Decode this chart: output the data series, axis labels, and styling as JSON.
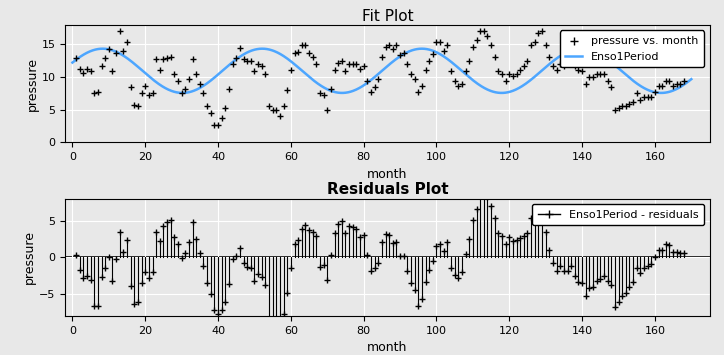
{
  "title_fit": "Fit Plot",
  "title_residuals": "Residuals Plot",
  "xlabel": "month",
  "ylabel": "pressure",
  "fit_color": "#4da6ff",
  "data_color": "black",
  "legend_fit": [
    "pressure vs. month",
    "Enso1Period"
  ],
  "legend_residuals": [
    "Enso1Period - residuals"
  ],
  "fit_linewidth": 1.8,
  "xlim": [
    -2,
    175
  ],
  "ylim_fit": [
    0,
    18
  ],
  "ylim_residuals": [
    -8,
    8
  ],
  "yticks_fit": [
    0,
    5,
    10,
    15
  ],
  "yticks_residuals": [
    -5,
    0,
    5
  ],
  "xticks": [
    0,
    20,
    40,
    60,
    80,
    100,
    120,
    140,
    160
  ],
  "background_color": "#e8e8e8",
  "marker": "+",
  "b1": 10.952,
  "b2": 3.148,
  "b3": 43.84,
  "b4": 1.263,
  "enso_months": [
    1,
    2,
    3,
    4,
    5,
    6,
    7,
    8,
    9,
    10,
    11,
    12,
    13,
    14,
    15,
    16,
    17,
    18,
    19,
    20,
    21,
    22,
    23,
    24,
    25,
    26,
    27,
    28,
    29,
    30,
    31,
    32,
    33,
    34,
    35,
    36,
    37,
    38,
    39,
    40,
    41,
    42,
    43,
    44,
    45,
    46,
    47,
    48,
    49,
    50,
    51,
    52,
    53,
    54,
    55,
    56,
    57,
    58,
    59,
    60,
    61,
    62,
    63,
    64,
    65,
    66,
    67,
    68,
    69,
    70,
    71,
    72,
    73,
    74,
    75,
    76,
    77,
    78,
    79,
    80,
    81,
    82,
    83,
    84,
    85,
    86,
    87,
    88,
    89,
    90,
    91,
    92,
    93,
    94,
    95,
    96,
    97,
    98,
    99,
    100,
    101,
    102,
    103,
    104,
    105,
    106,
    107,
    108,
    109,
    110,
    111,
    112,
    113,
    114,
    115,
    116,
    117,
    118,
    119,
    120,
    121,
    122,
    123,
    124,
    125,
    126,
    127,
    128,
    129,
    130,
    131,
    132,
    133,
    134,
    135,
    136,
    137,
    138,
    139,
    140,
    141,
    142,
    143,
    144,
    145,
    146,
    147,
    148,
    149,
    150,
    151,
    152,
    153,
    154,
    155,
    156,
    157,
    158,
    159,
    160,
    161,
    162,
    163,
    164,
    165,
    166,
    167,
    168
  ],
  "enso_pressure": [
    12.9,
    11.3,
    10.6,
    11.2,
    10.9,
    7.5,
    7.7,
    11.7,
    12.9,
    14.3,
    10.9,
    13.7,
    17.1,
    14.0,
    15.3,
    8.5,
    5.7,
    5.5,
    7.6,
    8.6,
    7.3,
    7.6,
    12.7,
    11.0,
    12.7,
    12.9,
    13.0,
    10.5,
    9.4,
    7.5,
    8.1,
    9.7,
    12.7,
    10.5,
    8.9,
    7.5,
    5.5,
    4.5,
    2.7,
    2.7,
    3.7,
    5.2,
    8.2,
    12.0,
    12.9,
    14.4,
    12.7,
    12.5,
    12.5,
    10.9,
    12.0,
    11.7,
    10.5,
    5.5,
    5.0,
    4.9,
    4.0,
    5.5,
    8.0,
    11.0,
    13.7,
    13.9,
    14.9,
    14.9,
    13.7,
    13.0,
    12.0,
    7.5,
    7.3,
    5.0,
    8.2,
    11.0,
    12.2,
    12.5,
    10.9,
    12.0,
    12.0,
    12.0,
    11.2,
    11.7,
    9.4,
    7.7,
    8.5,
    9.7,
    13.0,
    14.6,
    14.9,
    14.3,
    14.9,
    13.4,
    13.7,
    12.0,
    10.5,
    9.7,
    7.7,
    8.6,
    11.0,
    12.5,
    13.5,
    15.3,
    15.3,
    14.0,
    14.9,
    10.9,
    9.4,
    8.6,
    8.9,
    10.9,
    12.5,
    14.6,
    15.7,
    17.0,
    17.0,
    16.3,
    14.9,
    13.0,
    10.9,
    10.5,
    9.4,
    10.5,
    10.1,
    10.5,
    11.0,
    11.7,
    12.5,
    14.9,
    15.3,
    16.7,
    17.0,
    14.9,
    13.0,
    11.7,
    11.0,
    12.0,
    11.7,
    12.0,
    12.9,
    11.7,
    11.0,
    10.9,
    9.0,
    10.0,
    10.0,
    10.5,
    10.5,
    10.5,
    9.4,
    8.5,
    5.0,
    5.2,
    5.5,
    5.5,
    5.9,
    6.1,
    7.5,
    6.5,
    6.9,
    6.9,
    6.9,
    7.7,
    8.6,
    8.6,
    9.4,
    9.4,
    8.6,
    8.9,
    9.0,
    9.4
  ]
}
